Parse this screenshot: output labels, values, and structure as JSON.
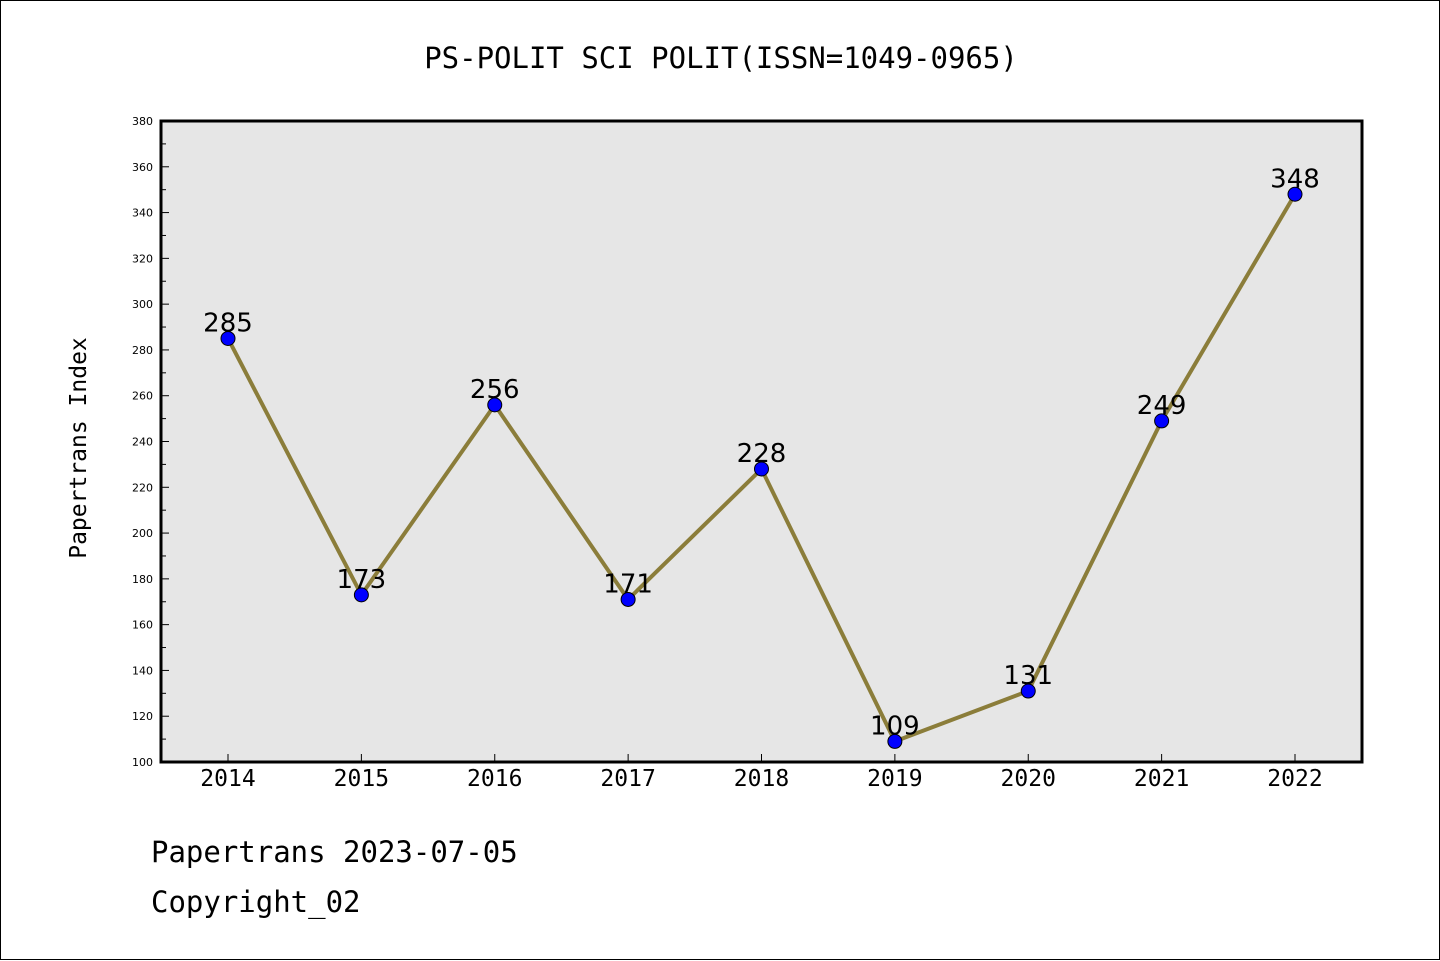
{
  "chart_data": {
    "type": "line",
    "title": "PS-POLIT SCI POLIT(ISSN=1049-0965)",
    "xlabel": "",
    "ylabel": "Papertrans Index",
    "categories": [
      "2014",
      "2015",
      "2016",
      "2017",
      "2018",
      "2019",
      "2020",
      "2021",
      "2022"
    ],
    "series": [
      {
        "values": [
          285,
          173,
          256,
          171,
          228,
          109,
          131,
          249,
          348
        ]
      }
    ],
    "data_labels": [
      "285",
      "173",
      "256",
      "171",
      "228",
      "109",
      "131",
      "249",
      "348"
    ],
    "ylim": [
      100,
      380
    ],
    "yticks": [
      100,
      120,
      140,
      160,
      180,
      200,
      220,
      240,
      260,
      280,
      300,
      320,
      340,
      360,
      380
    ],
    "grid": false,
    "legend": "none",
    "colors": {
      "line": "#8B7D3A",
      "marker": "#0000FF",
      "plot_background": "#E6E6E6"
    }
  },
  "footer": {
    "date_line": "Papertrans 2023-07-05",
    "copyright_line": "Copyright_02"
  }
}
